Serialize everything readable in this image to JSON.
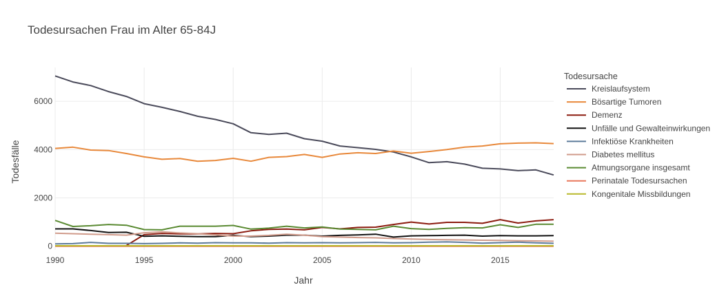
{
  "chart_data": {
    "type": "line",
    "title": "Todesursachen Frau im Alter 65-84J",
    "xlabel": "Jahr",
    "ylabel": "Todesfälle",
    "xlim": [
      1990,
      2018
    ],
    "ylim": [
      -150,
      7400
    ],
    "xticks": [
      1990,
      1995,
      2000,
      2005,
      2010,
      2015
    ],
    "yticks": [
      0,
      2000,
      4000,
      6000
    ],
    "grid": true,
    "legend": {
      "title": "Todesursache",
      "placement": "right"
    },
    "series": [
      {
        "name": "Kreislaufsystem",
        "color": "#4a4a5a",
        "x": [
          1990,
          1991,
          1992,
          1993,
          1994,
          1995,
          1996,
          1997,
          1998,
          1999,
          2000,
          2001,
          2002,
          2003,
          2004,
          2005,
          2006,
          2007,
          2008,
          2009,
          2010,
          2011,
          2012,
          2013,
          2014,
          2015,
          2016,
          2017,
          2018
        ],
        "y": [
          7050,
          6800,
          6650,
          6400,
          6200,
          5900,
          5750,
          5580,
          5380,
          5250,
          5070,
          4700,
          4630,
          4680,
          4450,
          4350,
          4150,
          4080,
          4010,
          3900,
          3700,
          3460,
          3500,
          3400,
          3230,
          3200,
          3130,
          3160,
          2950
        ]
      },
      {
        "name": "Bösartige Tumoren",
        "color": "#e8883a",
        "x": [
          1990,
          1991,
          1992,
          1993,
          1994,
          1995,
          1996,
          1997,
          1998,
          1999,
          2000,
          2001,
          2002,
          2003,
          2004,
          2005,
          2006,
          2007,
          2008,
          2009,
          2010,
          2011,
          2012,
          2013,
          2014,
          2015,
          2016,
          2017,
          2018
        ],
        "y": [
          4050,
          4100,
          3980,
          3960,
          3840,
          3700,
          3600,
          3630,
          3520,
          3550,
          3640,
          3520,
          3680,
          3710,
          3800,
          3680,
          3820,
          3870,
          3840,
          3940,
          3850,
          3920,
          4000,
          4100,
          4150,
          4240,
          4270,
          4280,
          4250
        ]
      },
      {
        "name": "Demenz",
        "color": "#8b1a0e",
        "x": [
          1994,
          1995,
          1996,
          1997,
          1998,
          1999,
          2000,
          2001,
          2002,
          2003,
          2004,
          2005,
          2006,
          2007,
          2008,
          2009,
          2010,
          2011,
          2012,
          2013,
          2014,
          2015,
          2016,
          2017,
          2018
        ],
        "y": [
          30,
          480,
          530,
          510,
          510,
          530,
          520,
          640,
          700,
          710,
          680,
          780,
          720,
          780,
          790,
          900,
          1000,
          920,
          990,
          990,
          950,
          1100,
          960,
          1050,
          1100
        ]
      },
      {
        "name": "Unfälle und Gewalteinwirkungen",
        "color": "#111111",
        "x": [
          1990,
          1991,
          1992,
          1993,
          1994,
          1995,
          1996,
          1997,
          1998,
          1999,
          2000,
          2001,
          2002,
          2003,
          2004,
          2005,
          2006,
          2007,
          2008,
          2009,
          2010,
          2011,
          2012,
          2013,
          2014,
          2015,
          2016,
          2017,
          2018
        ],
        "y": [
          720,
          720,
          650,
          570,
          580,
          410,
          430,
          410,
          400,
          400,
          450,
          400,
          420,
          460,
          460,
          420,
          450,
          470,
          500,
          380,
          430,
          440,
          450,
          460,
          420,
          440,
          430,
          430,
          440
        ]
      },
      {
        "name": "Infektiöse Krankheiten",
        "color": "#5b7a99",
        "x": [
          1990,
          1991,
          1992,
          1993,
          1994,
          1995,
          1996,
          1997,
          1998,
          1999,
          2000,
          2001,
          2002,
          2003,
          2004,
          2005,
          2006,
          2007,
          2008,
          2009,
          2010,
          2011,
          2012,
          2013,
          2014,
          2015,
          2016,
          2017,
          2018
        ],
        "y": [
          100,
          110,
          160,
          120,
          120,
          110,
          120,
          140,
          130,
          150,
          140,
          140,
          130,
          150,
          140,
          150,
          140,
          150,
          160,
          140,
          150,
          170,
          180,
          160,
          130,
          150,
          170,
          140,
          120
        ]
      },
      {
        "name": "Diabetes mellitus",
        "color": "#d09a8a",
        "x": [
          1990,
          1991,
          1992,
          1993,
          1994,
          1995,
          1996,
          1997,
          1998,
          1999,
          2000,
          2001,
          2002,
          2003,
          2004,
          2005,
          2006,
          2007,
          2008,
          2009,
          2010,
          2011,
          2012,
          2013,
          2014,
          2015,
          2016,
          2017,
          2018
        ],
        "y": [
          540,
          520,
          500,
          480,
          460,
          560,
          600,
          550,
          520,
          470,
          420,
          420,
          450,
          500,
          460,
          400,
          380,
          360,
          350,
          320,
          300,
          280,
          270,
          260,
          250,
          240,
          230,
          220,
          210
        ]
      },
      {
        "name": "Atmungsorgane insgesamt",
        "color": "#5a8a32",
        "x": [
          1990,
          1991,
          1992,
          1993,
          1994,
          1995,
          1996,
          1997,
          1998,
          1999,
          2000,
          2001,
          2002,
          2003,
          2004,
          2005,
          2006,
          2007,
          2008,
          2009,
          2010,
          2011,
          2012,
          2013,
          2014,
          2015,
          2016,
          2017,
          2018
        ],
        "y": [
          1070,
          820,
          850,
          900,
          870,
          690,
          680,
          830,
          830,
          830,
          860,
          710,
          750,
          830,
          760,
          800,
          710,
          700,
          680,
          830,
          730,
          700,
          740,
          770,
          760,
          890,
          780,
          910,
          910
        ]
      },
      {
        "name": "Perinatale Todesursachen",
        "color": "#e8775a",
        "x": [
          1990,
          1991,
          1992,
          1993,
          1994,
          1995,
          1996,
          1997,
          1998,
          1999,
          2000,
          2001,
          2002,
          2003,
          2004,
          2005,
          2006,
          2007,
          2008,
          2009,
          2010,
          2011,
          2012,
          2013,
          2014,
          2015,
          2016,
          2017,
          2018
        ],
        "y": [
          0,
          0,
          0,
          0,
          0,
          0,
          0,
          0,
          0,
          0,
          0,
          0,
          0,
          0,
          0,
          0,
          0,
          0,
          0,
          0,
          0,
          0,
          0,
          0,
          0,
          0,
          0,
          0,
          0
        ]
      },
      {
        "name": "Kongenitale Missbildungen",
        "color": "#b8b82a",
        "x": [
          1990,
          1991,
          1992,
          1993,
          1994,
          1995,
          1996,
          1997,
          1998,
          1999,
          2000,
          2001,
          2002,
          2003,
          2004,
          2005,
          2006,
          2007,
          2008,
          2009,
          2010,
          2011,
          2012,
          2013,
          2014,
          2015,
          2016,
          2017,
          2018
        ],
        "y": [
          20,
          20,
          20,
          20,
          20,
          20,
          20,
          20,
          20,
          20,
          20,
          20,
          20,
          20,
          20,
          20,
          20,
          20,
          20,
          20,
          20,
          20,
          20,
          20,
          20,
          20,
          20,
          20,
          20
        ]
      }
    ]
  }
}
